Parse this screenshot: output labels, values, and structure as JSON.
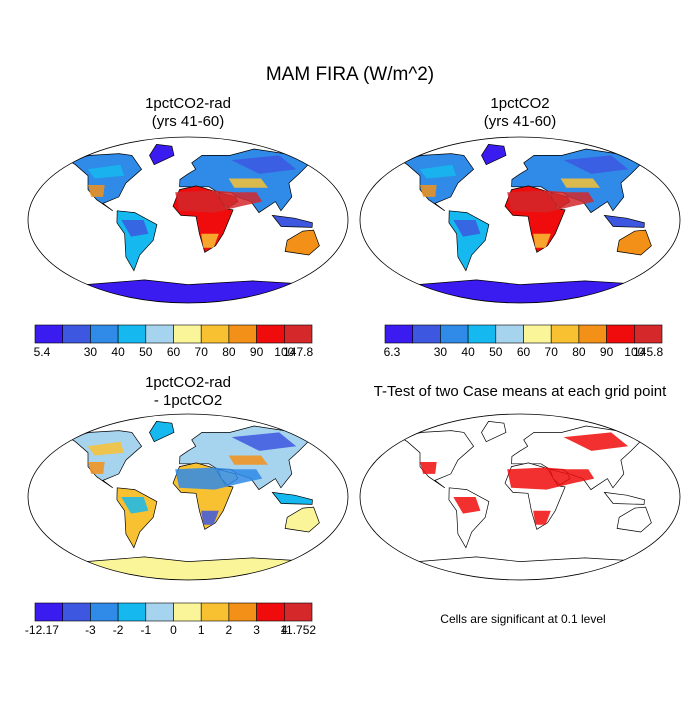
{
  "title": "MAM FIRA (W/m^2)",
  "panels": [
    {
      "title": [
        "1pctCO2-rad",
        "(yrs 41-60)"
      ],
      "colorbar": [
        "5.4",
        "30",
        "40",
        "50",
        "60",
        "70",
        "80",
        "90",
        "100",
        "147.8"
      ]
    },
    {
      "title": [
        "1pctCO2",
        "(yrs 41-60)"
      ],
      "colorbar": [
        "6.3",
        "30",
        "40",
        "50",
        "60",
        "70",
        "80",
        "90",
        "100",
        "145.8"
      ]
    },
    {
      "title": [
        "1pctCO2-rad",
        "- 1pctCO2"
      ],
      "colorbar": [
        "-12.17",
        "-3",
        "-2",
        "-1",
        "0",
        "1",
        "2",
        "3",
        "4",
        "11.752"
      ]
    },
    {
      "title": [
        "T-Test of two Case means at each grid point"
      ]
    }
  ],
  "note": "Cells are significant at 0.1 level"
}
